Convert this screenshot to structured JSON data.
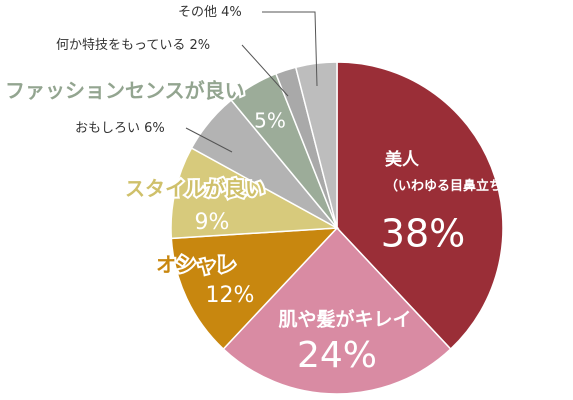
{
  "chart_data": {
    "type": "pie",
    "categories": [
      "美人\n（いわゆる目鼻立ちがキレイ）",
      "肌や髪がキレイ",
      "オシャレ",
      "スタイルが良い",
      "おもしろい",
      "ファッションセンスが良い",
      "何か特技をもっている",
      "その他"
    ],
    "values": [
      38,
      24,
      12,
      9,
      6,
      5,
      2,
      4
    ],
    "value_labels": [
      "38%",
      "24%",
      "12%",
      "9%",
      "6%",
      "5%",
      "2%",
      "4%"
    ],
    "colors": [
      "#9a2e37",
      "#d98ba3",
      "#c8870f",
      "#d7ca7c",
      "#b3b3b3",
      "#9cac99",
      "#a9a9a9",
      "#bdbdbd"
    ],
    "start_angle": 90,
    "direction": "clockwise"
  }
}
